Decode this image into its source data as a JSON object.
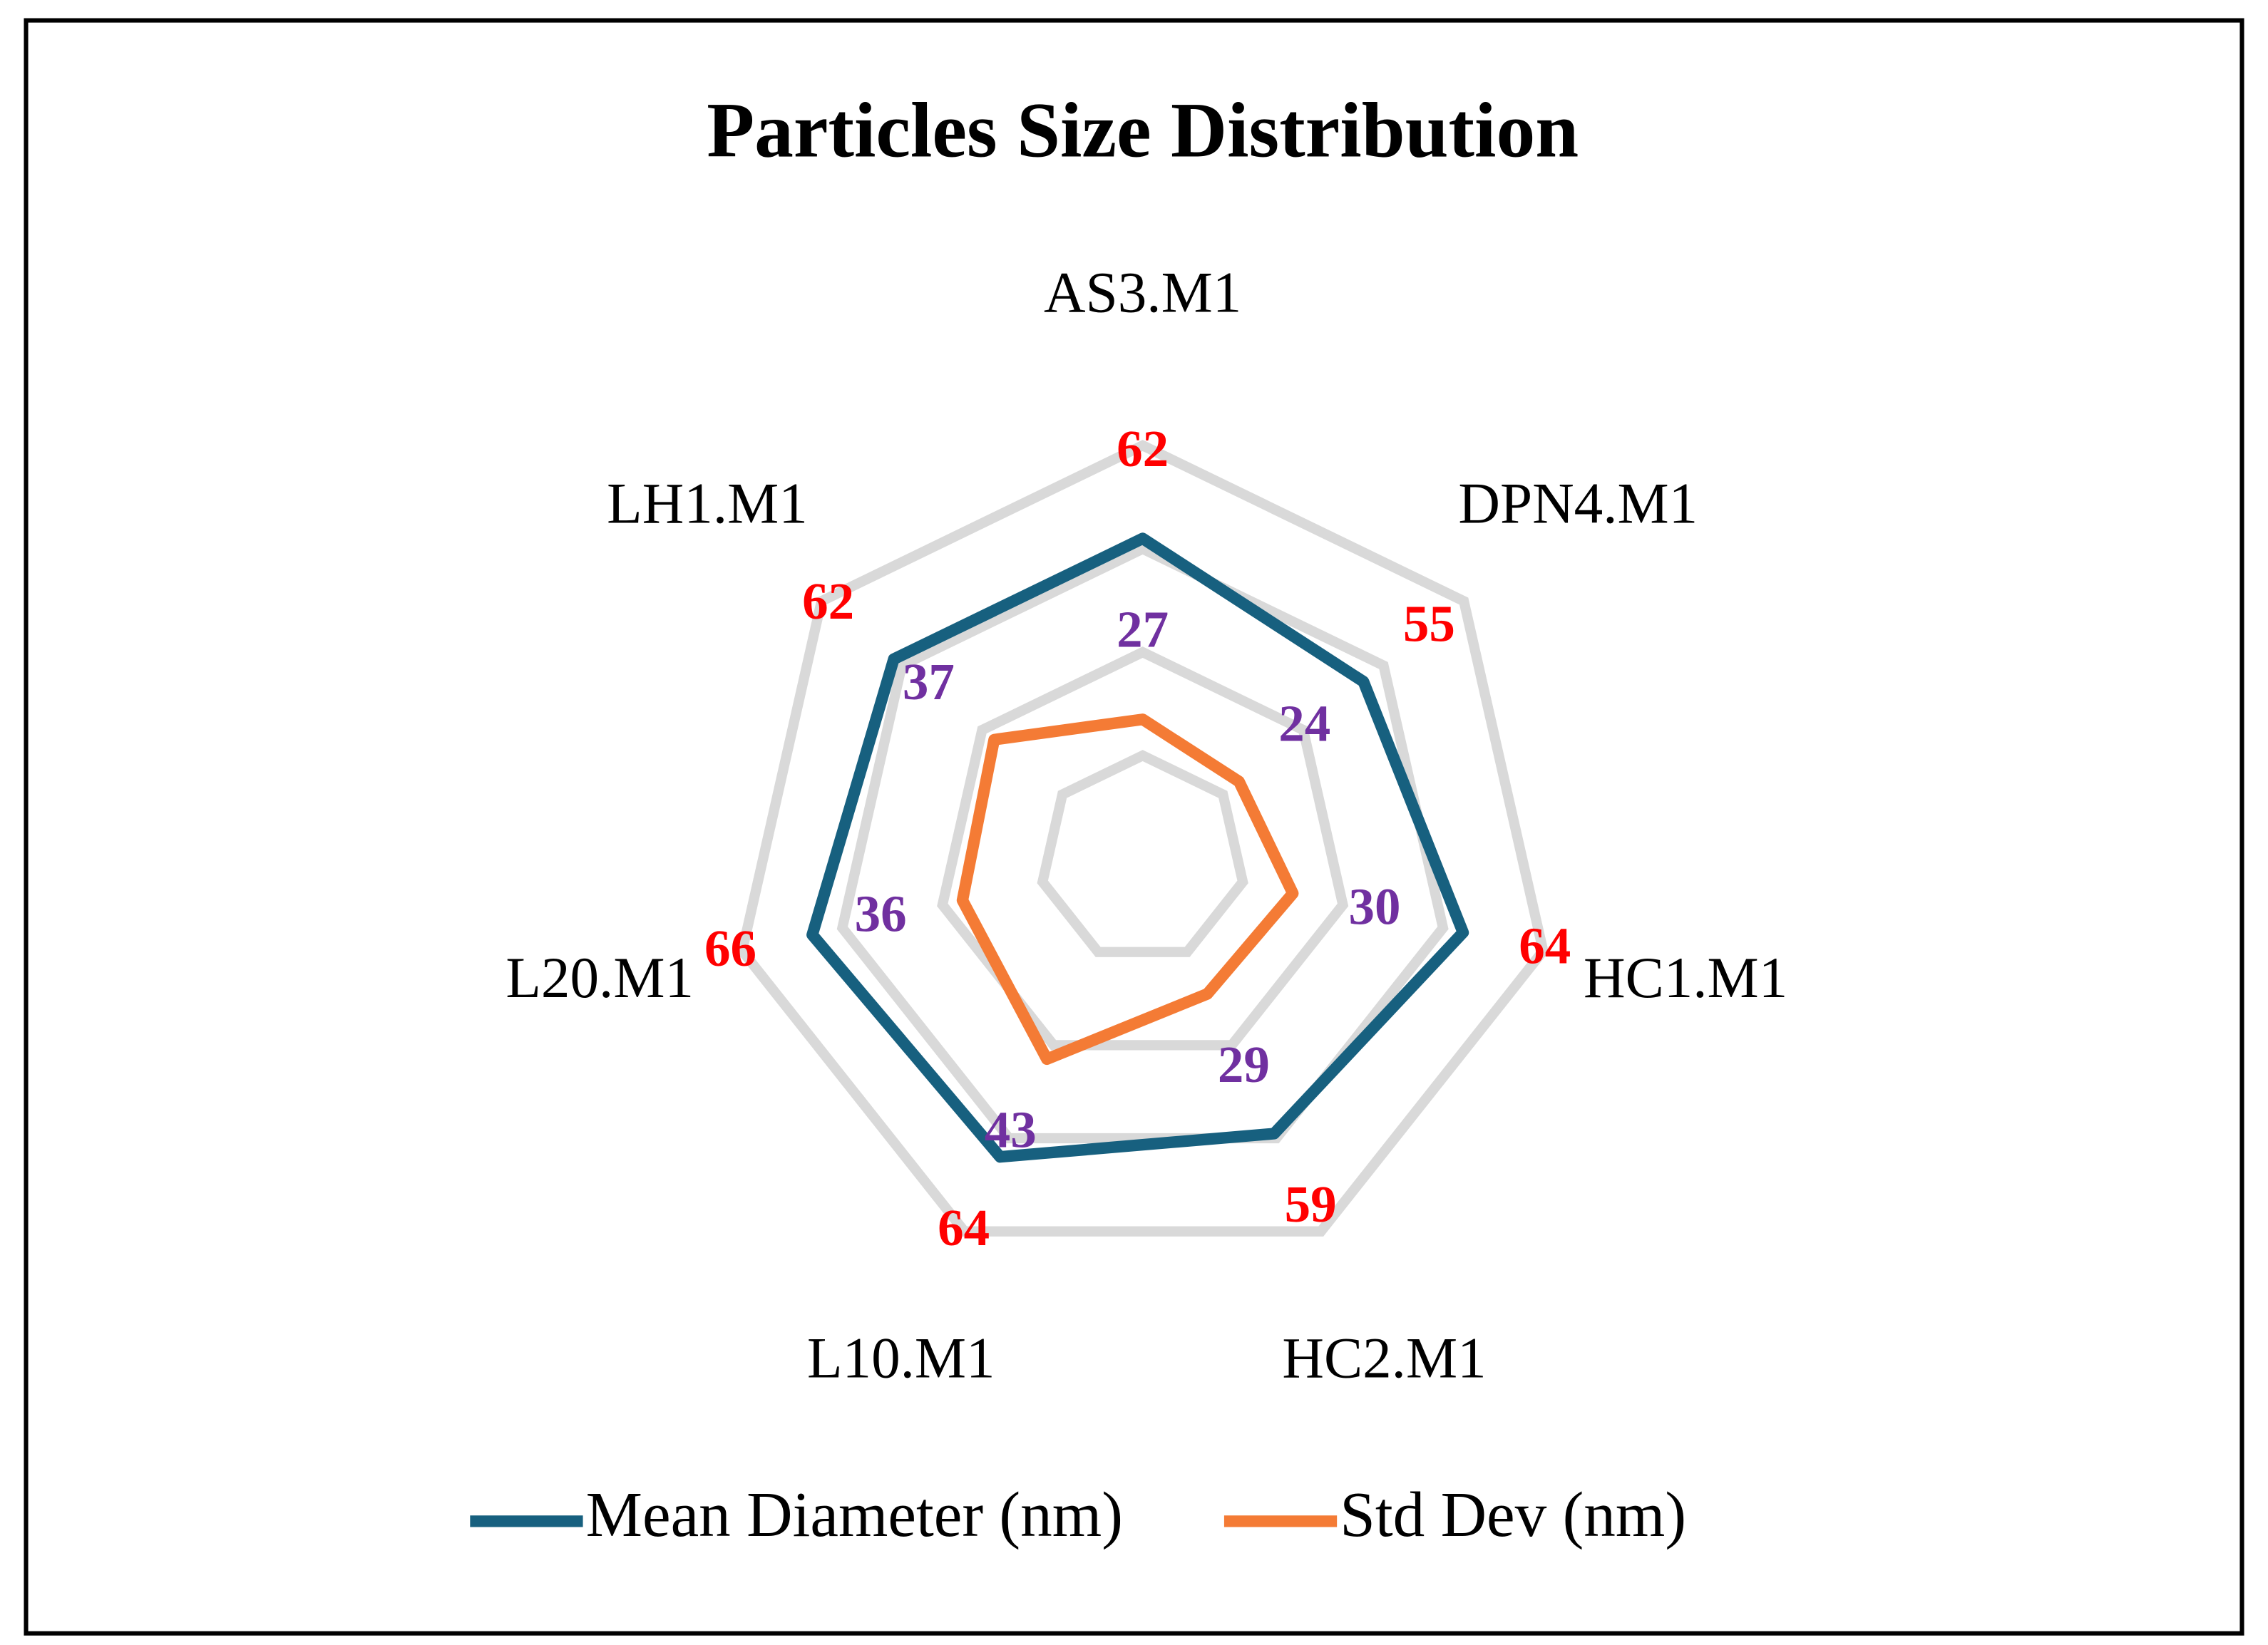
{
  "chart_data": {
    "type": "radar",
    "title": "Particles Size Distribution",
    "categories": [
      "AS3.M1",
      "DPN4.M1",
      "HC1.M1",
      "HC2.M1",
      "L10.M1",
      "L20.M1",
      "LH1.M1"
    ],
    "series": [
      {
        "name": "Mean Diameter (nm)",
        "color": "#17607f",
        "label_color": "#ff0000",
        "values": [
          62,
          55,
          64,
          59,
          64,
          66,
          62
        ]
      },
      {
        "name": "Std Dev (nm)",
        "color": "#f47b35",
        "label_color": "#7030a0",
        "values": [
          27,
          24,
          30,
          29,
          43,
          36,
          37
        ]
      }
    ],
    "ylim": [
      0,
      80
    ],
    "yticks": [
      0,
      20,
      40,
      60,
      80
    ],
    "grid": true,
    "grid_color": "#d9d9d9",
    "legend": "bottom"
  }
}
